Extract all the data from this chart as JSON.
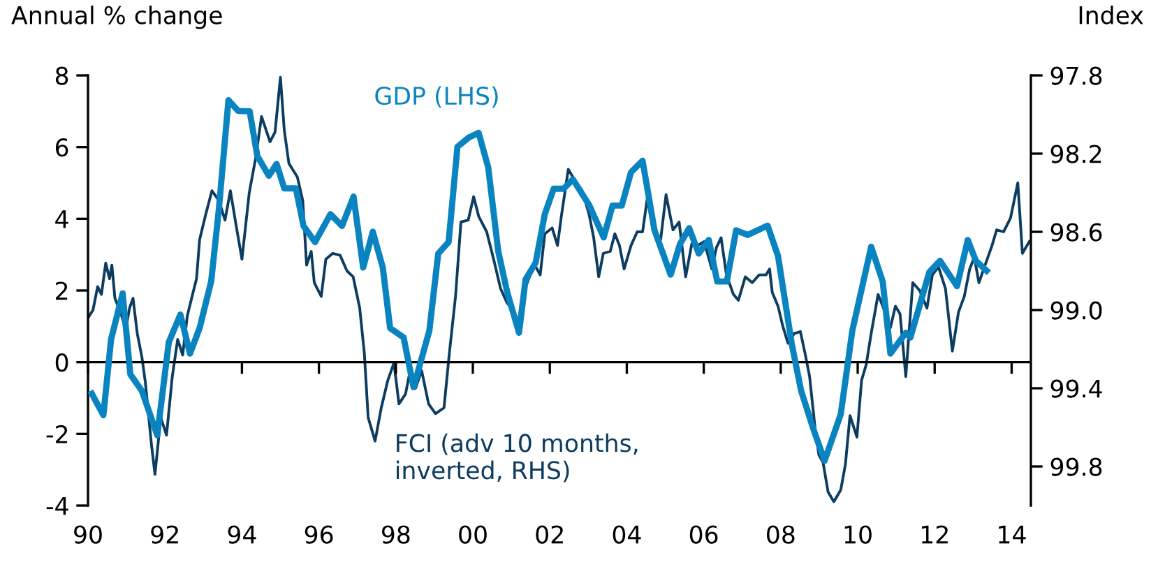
{
  "chart_data": {
    "type": "line",
    "ylabel": "Annual % change",
    "y2label": "Index",
    "xlim": [
      1990,
      2014.5
    ],
    "xticks": [
      {
        "value": 1990,
        "label": "90"
      },
      {
        "value": 1992,
        "label": "92"
      },
      {
        "value": 1994,
        "label": "94"
      },
      {
        "value": 1996,
        "label": "96"
      },
      {
        "value": 1998,
        "label": "98"
      },
      {
        "value": 2000,
        "label": "00"
      },
      {
        "value": 2002,
        "label": "02"
      },
      {
        "value": 2004,
        "label": "04"
      },
      {
        "value": 2006,
        "label": "06"
      },
      {
        "value": 2008,
        "label": "08"
      },
      {
        "value": 2010,
        "label": "10"
      },
      {
        "value": 2012,
        "label": "12"
      },
      {
        "value": 2014,
        "label": "14"
      }
    ],
    "ylim": [
      -4,
      8
    ],
    "yticks": [
      -4,
      -2,
      0,
      2,
      4,
      6,
      8
    ],
    "y2lim": [
      100.0,
      97.8
    ],
    "y2ticks": [
      {
        "value": 97.8,
        "label": "97.8"
      },
      {
        "value": 98.2,
        "label": "98.2"
      },
      {
        "value": 98.6,
        "label": "98.6"
      },
      {
        "value": 99.0,
        "label": "99.0"
      },
      {
        "value": 99.4,
        "label": "99.4"
      },
      {
        "value": 99.8,
        "label": "99.8"
      }
    ],
    "ref_lines": [
      {
        "axis": "y",
        "value": 0,
        "color": "#000000"
      }
    ],
    "grid": false,
    "legend": false,
    "marker": "none",
    "line_style": "solid",
    "series": [
      {
        "name": "GDP (LHS)",
        "color": "#0a84c0",
        "x": [
          1990.1,
          1990.4,
          1990.6,
          1990.9,
          1991.1,
          1991.4,
          1991.8,
          1992.1,
          1992.4,
          1992.65,
          1992.9,
          1993.2,
          1993.4,
          1993.65,
          1993.9,
          1994.2,
          1994.4,
          1994.7,
          1994.9,
          1995.1,
          1995.4,
          1995.6,
          1995.9,
          1996.3,
          1996.6,
          1996.9,
          1997.15,
          1997.4,
          1997.66,
          1997.85,
          1998.2,
          1998.46,
          1998.87,
          1999.1,
          1999.37,
          1999.6,
          1999.9,
          2000.15,
          2000.4,
          2000.66,
          2000.9,
          2001.2,
          2001.37,
          2001.63,
          2001.87,
          2002.1,
          2002.36,
          2002.6,
          2003.02,
          2003.4,
          2003.63,
          2003.87,
          2004.11,
          2004.41,
          2004.72,
          2005.14,
          2005.38,
          2005.62,
          2005.87,
          2006.13,
          2006.35,
          2006.6,
          2006.84,
          2007.14,
          2007.66,
          2007.93,
          2008.29,
          2008.53,
          2008.84,
          2009.14,
          2009.56,
          2009.86,
          2010.35,
          2010.65,
          2010.85,
          2011.25,
          2011.37,
          2011.86,
          2012.14,
          2012.58,
          2012.86,
          2013.07,
          2013.35
        ],
        "values": [
          -0.88,
          -1.48,
          0.64,
          1.92,
          -0.34,
          -0.8,
          -2.04,
          0.56,
          1.33,
          0.24,
          0.95,
          2.25,
          4.26,
          7.31,
          7.01,
          7.0,
          5.75,
          5.2,
          5.53,
          4.85,
          4.85,
          3.8,
          3.35,
          4.13,
          3.8,
          4.62,
          2.64,
          3.64,
          2.64,
          0.95,
          0.69,
          -0.7,
          0.88,
          3.03,
          3.35,
          6.01,
          6.27,
          6.4,
          5.43,
          3.09,
          1.92,
          0.82,
          2.31,
          2.77,
          4.13,
          4.84,
          4.84,
          5.1,
          4.39,
          3.48,
          4.37,
          4.37,
          5.3,
          5.62,
          3.68,
          2.44,
          3.29,
          3.74,
          3.03,
          3.41,
          2.25,
          2.25,
          3.68,
          3.55,
          3.81,
          2.96,
          0.49,
          -0.8,
          -1.84,
          -2.75,
          -1.45,
          0.88,
          3.22,
          2.25,
          0.24,
          0.82,
          0.69,
          2.51,
          2.83,
          2.12,
          3.41,
          2.83,
          2.55
        ]
      },
      {
        "name": "FCI (adv 10 months,\ninverted, RHS)",
        "color": "#0c3c60",
        "axis": "y2",
        "x": [
          1990.0,
          1990.13,
          1990.25,
          1990.35,
          1990.46,
          1990.56,
          1990.62,
          1990.7,
          1990.86,
          1990.98,
          1991.08,
          1991.17,
          1991.28,
          1991.4,
          1991.49,
          1991.65,
          1991.74,
          1991.89,
          1992.04,
          1992.19,
          1992.33,
          1992.46,
          1992.58,
          1992.73,
          1992.82,
          1992.9,
          1993.06,
          1993.22,
          1993.4,
          1993.56,
          1993.7,
          1993.86,
          1994.0,
          1994.19,
          1994.35,
          1994.51,
          1994.73,
          1994.86,
          1995.0,
          1995.1,
          1995.22,
          1995.44,
          1995.58,
          1995.68,
          1995.8,
          1995.88,
          1996.06,
          1996.18,
          1996.36,
          1996.55,
          1996.73,
          1996.89,
          1997.06,
          1997.18,
          1997.28,
          1997.46,
          1997.62,
          1997.79,
          1997.95,
          1998.08,
          1998.25,
          1998.34,
          1998.51,
          1998.67,
          1998.85,
          1999.03,
          1999.25,
          1999.39,
          1999.55,
          1999.69,
          1999.88,
          2000.02,
          2000.15,
          2000.36,
          2000.54,
          2000.72,
          2000.88,
          2001.03,
          2001.17,
          2001.29,
          2001.45,
          2001.61,
          2001.75,
          2001.87,
          2002.06,
          2002.2,
          2002.3,
          2002.48,
          2002.66,
          2002.84,
          2003.02,
          2003.14,
          2003.27,
          2003.39,
          2003.57,
          2003.69,
          2003.81,
          2003.93,
          2004.11,
          2004.27,
          2004.41,
          2004.56,
          2004.72,
          2004.88,
          2005.02,
          2005.2,
          2005.36,
          2005.53,
          2005.69,
          2005.84,
          2006.01,
          2006.21,
          2006.33,
          2006.45,
          2006.59,
          2006.77,
          2006.9,
          2007.08,
          2007.26,
          2007.44,
          2007.62,
          2007.71,
          2007.78,
          2007.93,
          2008.05,
          2008.19,
          2008.35,
          2008.51,
          2008.63,
          2008.75,
          2008.89,
          2008.99,
          2009.1,
          2009.23,
          2009.38,
          2009.56,
          2009.68,
          2009.8,
          2009.98,
          2010.1,
          2010.22,
          2010.35,
          2010.53,
          2010.69,
          2010.85,
          2010.98,
          2011.1,
          2011.25,
          2011.43,
          2011.61,
          2011.8,
          2011.94,
          2012.1,
          2012.28,
          2012.46,
          2012.62,
          2012.77,
          2012.91,
          2013.03,
          2013.15,
          2013.31,
          2013.49,
          2013.61,
          2013.79,
          2013.97,
          2014.16,
          2014.28,
          2014.46
        ],
        "values": [
          99.04,
          99.0,
          98.88,
          98.92,
          98.76,
          98.84,
          98.77,
          98.94,
          99.02,
          99.1,
          98.99,
          98.94,
          99.12,
          99.24,
          99.37,
          99.69,
          99.84,
          99.55,
          99.64,
          99.34,
          99.15,
          99.23,
          99.03,
          98.91,
          98.84,
          98.64,
          98.51,
          98.39,
          98.44,
          98.54,
          98.39,
          98.58,
          98.74,
          98.4,
          98.23,
          98.01,
          98.14,
          98.09,
          97.81,
          98.08,
          98.25,
          98.32,
          98.44,
          98.77,
          98.7,
          98.86,
          98.93,
          98.74,
          98.71,
          98.72,
          98.8,
          98.83,
          98.99,
          99.22,
          99.55,
          99.67,
          99.5,
          99.36,
          99.27,
          99.48,
          99.43,
          99.34,
          99.4,
          99.31,
          99.48,
          99.53,
          99.5,
          99.22,
          98.93,
          98.55,
          98.54,
          98.42,
          98.52,
          98.6,
          98.74,
          98.89,
          98.96,
          99.0,
          99.08,
          98.93,
          98.84,
          98.77,
          98.82,
          98.61,
          98.58,
          98.67,
          98.52,
          98.28,
          98.34,
          98.39,
          98.51,
          98.63,
          98.83,
          98.71,
          98.7,
          98.61,
          98.67,
          98.79,
          98.67,
          98.6,
          98.6,
          98.39,
          98.59,
          98.64,
          98.41,
          98.59,
          98.55,
          98.83,
          98.66,
          98.67,
          98.65,
          98.79,
          98.68,
          98.63,
          98.82,
          98.92,
          98.95,
          98.83,
          98.86,
          98.82,
          98.82,
          98.79,
          98.91,
          98.98,
          99.08,
          99.17,
          99.12,
          99.11,
          99.22,
          99.34,
          99.6,
          99.74,
          99.78,
          99.93,
          99.98,
          99.92,
          99.79,
          99.54,
          99.65,
          99.36,
          99.28,
          99.12,
          98.92,
          99.0,
          99.09,
          98.98,
          99.02,
          99.34,
          98.86,
          98.9,
          98.99,
          98.82,
          98.78,
          98.89,
          99.21,
          99.01,
          98.93,
          98.79,
          98.73,
          98.86,
          98.77,
          98.67,
          98.59,
          98.6,
          98.53,
          98.35,
          98.71,
          98.65
        ]
      }
    ]
  }
}
